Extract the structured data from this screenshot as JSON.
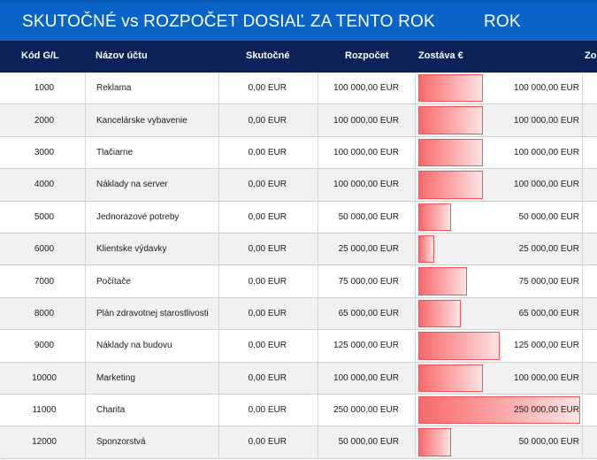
{
  "title": {
    "main": "SKUTOČNÉ vs ROZPOČET DOSIAĽ ZA TENTO ROK",
    "right": "ROK"
  },
  "columns": {
    "code": "Kód G/L",
    "name": "Názov účtu",
    "actual": "Skutočné",
    "budget": "Rozpočet",
    "remaining": "Zostáva €",
    "extra": "Zo"
  },
  "colors": {
    "title_band": "#0a63c7",
    "header_band": "#0c2157",
    "bar_fill": "#f8696b"
  },
  "max_remaining": 250000,
  "rows": [
    {
      "code": "1000",
      "name": "Reklama",
      "actual": "0,00 EUR",
      "budget": "100 000,00 EUR",
      "remaining": "100 000,00 EUR",
      "remaining_value": 100000
    },
    {
      "code": "2000",
      "name": "Kancelárske vybavenie",
      "actual": "0,00 EUR",
      "budget": "100 000,00 EUR",
      "remaining": "100 000,00 EUR",
      "remaining_value": 100000
    },
    {
      "code": "3000",
      "name": "Tlačiarne",
      "actual": "0,00 EUR",
      "budget": "100 000,00 EUR",
      "remaining": "100 000,00 EUR",
      "remaining_value": 100000
    },
    {
      "code": "4000",
      "name": "Náklady na server",
      "actual": "0,00 EUR",
      "budget": "100 000,00 EUR",
      "remaining": "100 000,00 EUR",
      "remaining_value": 100000
    },
    {
      "code": "5000",
      "name": "Jednorazové potreby",
      "actual": "0,00 EUR",
      "budget": "50 000,00 EUR",
      "remaining": "50 000,00 EUR",
      "remaining_value": 50000
    },
    {
      "code": "6000",
      "name": "Klientske výdavky",
      "actual": "0,00 EUR",
      "budget": "25 000,00 EUR",
      "remaining": "25 000,00 EUR",
      "remaining_value": 25000
    },
    {
      "code": "7000",
      "name": "Počítače",
      "actual": "0,00 EUR",
      "budget": "75 000,00 EUR",
      "remaining": "75 000,00 EUR",
      "remaining_value": 75000
    },
    {
      "code": "8000",
      "name": "Plán zdravotnej starostlivosti",
      "actual": "0,00 EUR",
      "budget": "65 000,00 EUR",
      "remaining": "65 000,00 EUR",
      "remaining_value": 65000
    },
    {
      "code": "9000",
      "name": "Náklady na budovu",
      "actual": "0,00 EUR",
      "budget": "125 000,00 EUR",
      "remaining": "125 000,00 EUR",
      "remaining_value": 125000
    },
    {
      "code": "10000",
      "name": "Marketing",
      "actual": "0,00 EUR",
      "budget": "100 000,00 EUR",
      "remaining": "100 000,00 EUR",
      "remaining_value": 100000
    },
    {
      "code": "11000",
      "name": "Charita",
      "actual": "0,00 EUR",
      "budget": "250 000,00 EUR",
      "remaining": "250 000,00 EUR",
      "remaining_value": 250000
    },
    {
      "code": "12000",
      "name": "Sponzorstvá",
      "actual": "0,00 EUR",
      "budget": "50 000,00 EUR",
      "remaining": "50 000,00 EUR",
      "remaining_value": 50000
    }
  ]
}
